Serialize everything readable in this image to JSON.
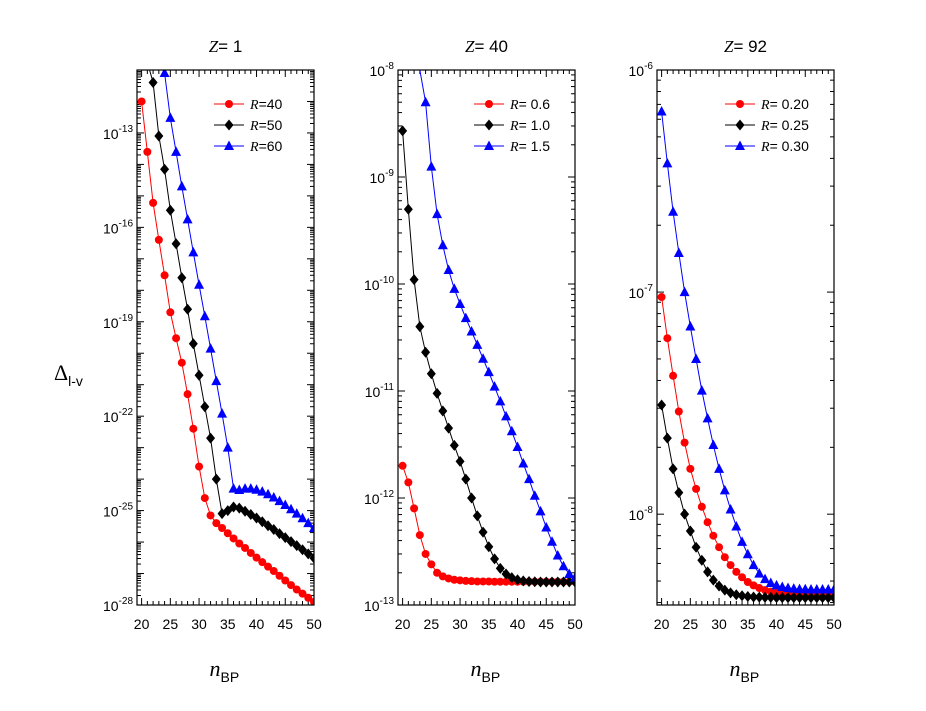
{
  "ylabel": "Δ",
  "ylabel_sub": "l-v",
  "xlabel": "n",
  "xlabel_sub": "BP",
  "chart_data": [
    {
      "type": "line",
      "title": "Z= 1",
      "xlabel": "n BP",
      "ylabel": "Δ l-v",
      "xlim": [
        19.2,
        50
      ],
      "ylim": [
        1e-28,
        1e-11
      ],
      "yscale": "log",
      "x_ticks": [
        20,
        25,
        30,
        35,
        40,
        45,
        50
      ],
      "y_ticks": [
        {
          "value": 1e-28,
          "base": "10",
          "exp": "-28"
        },
        {
          "value": 1e-25,
          "base": "10",
          "exp": "-25"
        },
        {
          "value": 1e-22,
          "base": "10",
          "exp": "-22"
        },
        {
          "value": 1e-19,
          "base": "10",
          "exp": "-19"
        },
        {
          "value": 1e-16,
          "base": "10",
          "exp": "-16"
        },
        {
          "value": 1e-13,
          "base": "10",
          "exp": "-13"
        }
      ],
      "legend_placement": "top-right",
      "x": [
        20,
        21,
        22,
        23,
        24,
        25,
        26,
        27,
        28,
        29,
        30,
        31,
        32,
        33,
        34,
        35,
        36,
        37,
        38,
        39,
        40,
        41,
        42,
        43,
        44,
        45,
        46,
        47,
        48,
        49,
        50
      ],
      "series": [
        {
          "name": "R=40",
          "legend_prefix": "R",
          "legend_value": "=40",
          "color": "#ff0000",
          "marker": "circle",
          "values": [
            1e-12,
            2.5e-14,
            6e-16,
            4e-17,
            3e-18,
            2e-19,
            3e-20,
            5e-21,
            5e-22,
            4e-23,
            2.5e-24,
            2.5e-25,
            7e-26,
            4e-26,
            2.8e-26,
            1.9e-26,
            1.3e-26,
            9e-27,
            6.5e-27,
            4.5e-27,
            3.2e-27,
            2.3e-27,
            1.65e-27,
            1.2e-27,
            8.5e-28,
            6e-28,
            4.3e-28,
            3.1e-28,
            2.3e-28,
            1.7e-28,
            1.25e-28
          ]
        },
        {
          "name": "R=50",
          "legend_prefix": "R",
          "legend_value": "=50",
          "color": "#000000",
          "marker": "diamond",
          "values": [
            1.8e-11,
            1.8e-11,
            4e-12,
            8e-14,
            7e-15,
            3.5e-16,
            3e-17,
            2.5e-18,
            2.5e-19,
            2e-20,
            2e-21,
            2e-22,
            2e-23,
            1e-24,
            8e-26,
            1e-25,
            1.3e-25,
            1.2e-25,
            9.5e-26,
            7.5e-26,
            5.8e-26,
            4.4e-26,
            3.3e-26,
            2.5e-26,
            1.85e-26,
            1.38e-26,
            1.03e-26,
            7.7e-27,
            5.7e-27,
            4.2e-27,
            3.1e-27
          ]
        },
        {
          "name": "R=60",
          "legend_prefix": "R",
          "legend_value": "=60",
          "color": "#0000ff",
          "marker": "triangle",
          "values": [
            1.8e-11,
            1.8e-11,
            1.8e-11,
            1.8e-11,
            8e-12,
            3e-13,
            2.5e-14,
            2e-15,
            1.8e-16,
            1.6e-17,
            1.5e-18,
            1.5e-19,
            1.4e-20,
            1.3e-21,
            1.2e-22,
            1e-23,
            5e-25,
            4.5e-25,
            5e-25,
            5e-25,
            4.6e-25,
            4e-25,
            3.3e-25,
            2.6e-25,
            2e-25,
            1.5e-25,
            1.1e-25,
            8e-26,
            5.7e-26,
            4e-26,
            2.8e-26
          ]
        }
      ]
    },
    {
      "type": "line",
      "title": "Z= 40",
      "xlabel": "n BP",
      "ylabel": "",
      "xlim": [
        19.2,
        50
      ],
      "ylim": [
        1e-13,
        1e-08
      ],
      "yscale": "log",
      "x_ticks": [
        20,
        25,
        30,
        35,
        40,
        45,
        50
      ],
      "y_ticks": [
        {
          "value": 1e-13,
          "base": "10",
          "exp": "-13"
        },
        {
          "value": 1e-12,
          "base": "10",
          "exp": "-12"
        },
        {
          "value": 1e-11,
          "base": "10",
          "exp": "-11"
        },
        {
          "value": 1e-10,
          "base": "10",
          "exp": "-10"
        },
        {
          "value": 1e-09,
          "base": "10",
          "exp": "-9"
        },
        {
          "value": 1e-08,
          "base": "10",
          "exp": "-8"
        }
      ],
      "legend_placement": "top-right",
      "x": [
        20,
        21,
        22,
        23,
        24,
        25,
        26,
        27,
        28,
        29,
        30,
        31,
        32,
        33,
        34,
        35,
        36,
        37,
        38,
        39,
        40,
        41,
        42,
        43,
        44,
        45,
        46,
        47,
        48,
        49,
        50
      ],
      "series": [
        {
          "name": "R= 0.6",
          "legend_prefix": "R",
          "legend_value": "= 0.6",
          "color": "#ff0000",
          "marker": "circle",
          "values": [
            2e-12,
            1.4e-12,
            8e-13,
            4.5e-13,
            3e-13,
            2.4e-13,
            2e-13,
            1.85e-13,
            1.77e-13,
            1.72e-13,
            1.7e-13,
            1.68e-13,
            1.67e-13,
            1.66e-13,
            1.66e-13,
            1.66e-13,
            1.65e-13,
            1.65e-13,
            1.65e-13,
            1.65e-13,
            1.65e-13,
            1.65e-13,
            1.65e-13,
            1.65e-13,
            1.65e-13,
            1.65e-13,
            1.65e-13,
            1.65e-13,
            1.65e-13,
            1.65e-13,
            1.65e-13
          ]
        },
        {
          "name": "R= 1.0",
          "legend_prefix": "R",
          "legend_value": "= 1.0",
          "color": "#000000",
          "marker": "diamond",
          "values": [
            2.7e-09,
            5e-10,
            1.1e-10,
            4e-11,
            2.3e-11,
            1.45e-11,
            9.5e-12,
            6.5e-12,
            4.5e-12,
            3.1e-12,
            2.2e-12,
            1.5e-12,
            1e-12,
            6.8e-13,
            4.8e-13,
            3.5e-13,
            2.7e-13,
            2.2e-13,
            1.95e-13,
            1.8e-13,
            1.72e-13,
            1.68e-13,
            1.66e-13,
            1.65e-13,
            1.64e-13,
            1.64e-13,
            1.64e-13,
            1.64e-13,
            1.64e-13,
            1.64e-13,
            1.64e-13
          ]
        },
        {
          "name": "R= 1.5",
          "legend_prefix": "R",
          "legend_value": "= 1.5",
          "color": "#0000ff",
          "marker": "triangle",
          "values": [
            1e-08,
            1e-08,
            1e-08,
            1e-08,
            5e-09,
            1.25e-09,
            4.5e-10,
            2.3e-10,
            1.35e-10,
            9e-11,
            6.5e-11,
            4.8e-11,
            3.6e-11,
            2.7e-11,
            2e-11,
            1.5e-11,
            1.1e-11,
            8e-12,
            5.8e-12,
            4.2e-12,
            3e-12,
            2.1e-12,
            1.5e-12,
            1.05e-12,
            7.5e-13,
            5.3e-13,
            3.9e-13,
            2.9e-13,
            2.3e-13,
            1.95e-13,
            1.8e-13
          ]
        }
      ]
    },
    {
      "type": "line",
      "title": "Z= 92",
      "xlabel": "n BP",
      "ylabel": "",
      "xlim": [
        19.2,
        50
      ],
      "ylim": [
        3.9e-09,
        1e-06
      ],
      "yscale": "log",
      "x_ticks": [
        20,
        25,
        30,
        35,
        40,
        45,
        50
      ],
      "y_ticks": [
        {
          "value": 1e-08,
          "base": "10",
          "exp": "-8"
        },
        {
          "value": 1e-07,
          "base": "10",
          "exp": "-7"
        },
        {
          "value": 1e-06,
          "base": "10",
          "exp": "-6"
        }
      ],
      "legend_placement": "top-right",
      "x": [
        20,
        21,
        22,
        23,
        24,
        25,
        26,
        27,
        28,
        29,
        30,
        31,
        32,
        33,
        34,
        35,
        36,
        37,
        38,
        39,
        40,
        41,
        42,
        43,
        44,
        45,
        46,
        47,
        48,
        49,
        50
      ],
      "series": [
        {
          "name": "R= 0.20",
          "legend_prefix": "R",
          "legend_value": "= 0.20",
          "color": "#ff0000",
          "marker": "circle",
          "values": [
            9.5e-08,
            6.2e-08,
            4.2e-08,
            2.9e-08,
            2.1e-08,
            1.6e-08,
            1.3e-08,
            1.08e-08,
            9.2e-09,
            8e-09,
            7.1e-09,
            6.4e-09,
            5.9e-09,
            5.5e-09,
            5.2e-09,
            4.95e-09,
            4.78e-09,
            4.65e-09,
            4.55e-09,
            4.48e-09,
            4.43e-09,
            4.4e-09,
            4.37e-09,
            4.35e-09,
            4.34e-09,
            4.33e-09,
            4.32e-09,
            4.32e-09,
            4.32e-09,
            4.31e-09,
            4.31e-09
          ]
        },
        {
          "name": "R= 0.25",
          "legend_prefix": "R",
          "legend_value": "= 0.25",
          "color": "#000000",
          "marker": "diamond",
          "values": [
            3.1e-08,
            2.2e-08,
            1.6e-08,
            1.25e-08,
            1e-08,
            8.4e-09,
            7.1e-09,
            6.2e-09,
            5.5e-09,
            5.05e-09,
            4.75e-09,
            4.55e-09,
            4.42e-09,
            4.34e-09,
            4.29e-09,
            4.26e-09,
            4.24e-09,
            4.23e-09,
            4.22e-09,
            4.22e-09,
            4.21e-09,
            4.21e-09,
            4.21e-09,
            4.21e-09,
            4.21e-09,
            4.21e-09,
            4.21e-09,
            4.21e-09,
            4.21e-09,
            4.21e-09,
            4.21e-09
          ]
        },
        {
          "name": "R= 0.30",
          "legend_prefix": "R",
          "legend_value": "= 0.30",
          "color": "#0000ff",
          "marker": "triangle",
          "values": [
            6.5e-07,
            3.8e-07,
            2.3e-07,
            1.5e-07,
            1e-07,
            7e-08,
            5e-08,
            3.6e-08,
            2.7e-08,
            2.05e-08,
            1.6e-08,
            1.28e-08,
            1.05e-08,
            8.8e-09,
            7.5e-09,
            6.6e-09,
            5.9e-09,
            5.4e-09,
            5.1e-09,
            4.9e-09,
            4.78e-09,
            4.7e-09,
            4.65e-09,
            4.62e-09,
            4.6e-09,
            4.59e-09,
            4.58e-09,
            4.58e-09,
            4.58e-09,
            4.58e-09,
            4.58e-09
          ]
        }
      ]
    }
  ]
}
